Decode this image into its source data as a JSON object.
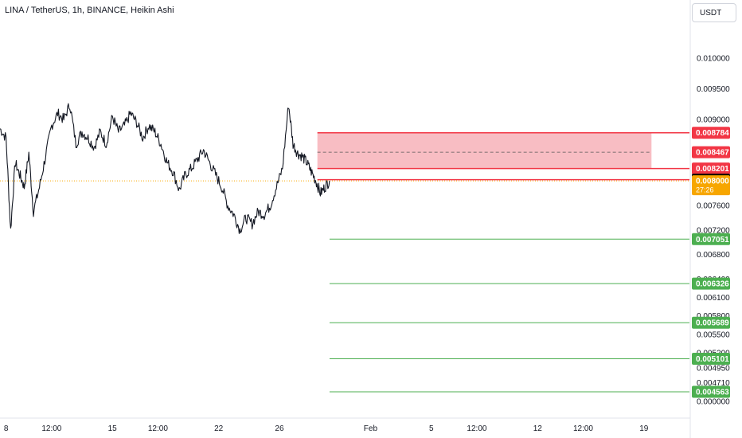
{
  "header": {
    "title": "LINA / TetherUS, 1h, BINANCE, Heikin Ashi",
    "currency": "USDT"
  },
  "chart_data": {
    "type": "line",
    "title": "LINA / TetherUS, 1h, BINANCE, Heikin Ashi",
    "xlabel": "",
    "ylabel": "",
    "ylim": [
      0.00445,
      0.0105
    ],
    "price_ticks": [
      "0.010000",
      "0.009500",
      "0.009000",
      "0.007600",
      "0.007200",
      "0.006800",
      "0.006400",
      "0.006100",
      "0.005800",
      "0.005500",
      "0.005200",
      "0.004950",
      "0.004710",
      "0.000000"
    ],
    "time_ticks": [
      {
        "label": "8",
        "x": 1
      },
      {
        "label": "12:00",
        "x": 4
      },
      {
        "label": "15",
        "x": 8
      },
      {
        "label": "12:00",
        "x": 11
      },
      {
        "label": "22",
        "x": 15
      },
      {
        "label": "26",
        "x": 19
      },
      {
        "label": "Feb",
        "x": 25
      },
      {
        "label": "5",
        "x": 29
      },
      {
        "label": "12:00",
        "x": 32
      },
      {
        "label": "12",
        "x": 36
      },
      {
        "label": "12:00",
        "x": 39
      },
      {
        "label": "19",
        "x": 43
      }
    ],
    "x_range": [
      0.6,
      46
    ],
    "series": [
      {
        "x": [
          0.6,
          1.0,
          1.3,
          1.6,
          1.9,
          2.2,
          2.5,
          2.8,
          3.2,
          3.6,
          4.0,
          4.4,
          4.8,
          5.2,
          5.6,
          6.0,
          6.4,
          6.8,
          7.2,
          7.6,
          8.0,
          8.4,
          8.8,
          9.2,
          9.6,
          10.0,
          10.4,
          10.8,
          11.2,
          11.6,
          12.0,
          12.4,
          12.8,
          13.2,
          13.6,
          14.0,
          14.4,
          14.8,
          15.2,
          15.6,
          16.0,
          16.4,
          16.8,
          17.2,
          17.6,
          18.0,
          18.4,
          18.8,
          19.2,
          19.6,
          19.9,
          20.2,
          20.5,
          20.8,
          21.1,
          21.4,
          21.7,
          22.0,
          22.3
        ],
        "values": [
          0.00885,
          0.0087,
          0.0072,
          0.0083,
          0.0081,
          0.0079,
          0.00845,
          0.0075,
          0.0079,
          0.0084,
          0.0089,
          0.0091,
          0.009,
          0.00925,
          0.0086,
          0.0088,
          0.0087,
          0.00855,
          0.0088,
          0.0086,
          0.00905,
          0.0088,
          0.0089,
          0.0091,
          0.00895,
          0.0087,
          0.0089,
          0.0088,
          0.0086,
          0.0083,
          0.00815,
          0.00785,
          0.0081,
          0.0082,
          0.00835,
          0.0085,
          0.0083,
          0.0081,
          0.0079,
          0.0076,
          0.00745,
          0.0072,
          0.0074,
          0.0073,
          0.0075,
          0.00745,
          0.0076,
          0.0079,
          0.0082,
          0.00925,
          0.0086,
          0.00845,
          0.0084,
          0.0083,
          0.00815,
          0.008,
          0.0078,
          0.0079,
          0.008
        ]
      }
    ],
    "current_price": {
      "value": 0.008,
      "label": "0.008000",
      "countdown": "27:26"
    },
    "price_badges": [
      {
        "label": "0.008784",
        "value": 0.008784,
        "color": "#f23645"
      },
      {
        "label": "0.008467",
        "value": 0.008467,
        "color": "#f23645"
      },
      {
        "label": "0.008201",
        "value": 0.008201,
        "color": "#f23645"
      },
      {
        "label": "0.008020",
        "value": 0.00802,
        "color": "#000000"
      }
    ],
    "zone": {
      "top": 0.008784,
      "bottom": 0.008201,
      "mid": 0.008467,
      "x_start": 21.5,
      "x_end": 43.5,
      "fill": "#f7b1b8",
      "line": "#f23645"
    },
    "resistance_line": {
      "value": 0.00802,
      "x_start": 21.5,
      "color": "#f23645"
    },
    "targets": [
      {
        "label": "0.007051",
        "value": 0.007051
      },
      {
        "label": "0.006326",
        "value": 0.006326
      },
      {
        "label": "0.005689",
        "value": 0.005689
      },
      {
        "label": "0.005101",
        "value": 0.005101
      },
      {
        "label": "0.004563",
        "value": 0.004563
      }
    ],
    "target_color": "#4caf50",
    "target_x_start": 22.3,
    "grid": false,
    "legend": "none"
  }
}
